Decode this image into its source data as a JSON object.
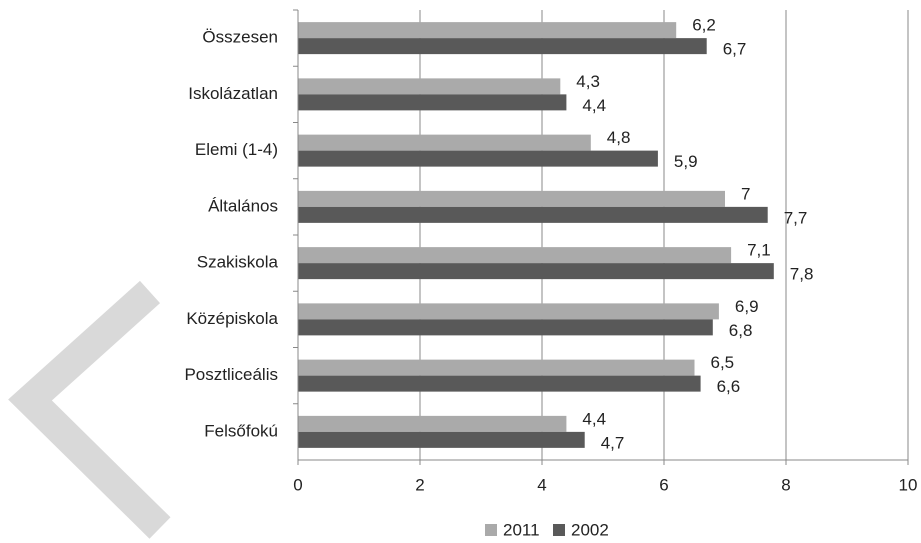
{
  "chart_data": {
    "type": "bar",
    "orientation": "horizontal",
    "categories": [
      "Összesen",
      "Iskolázatlan",
      "Elemi (1-4)",
      "Általános",
      "Szakiskola",
      "Középiskola",
      "Posztliceális",
      "Felsőfokú"
    ],
    "series": [
      {
        "name": "2011",
        "color": "#aaaaaa",
        "values": [
          6.2,
          4.3,
          4.8,
          7,
          7.1,
          6.9,
          6.5,
          4.4
        ],
        "value_labels": [
          "6,2",
          "4,3",
          "4,8",
          "7",
          "7,1",
          "6,9",
          "6,5",
          "4,4"
        ]
      },
      {
        "name": "2002",
        "color": "#595959",
        "values": [
          6.7,
          4.4,
          5.9,
          7.7,
          7.8,
          6.8,
          6.6,
          4.7
        ],
        "value_labels": [
          "6,7",
          "4,4",
          "5,9",
          "7,7",
          "7,8",
          "6,8",
          "6,6",
          "4,7"
        ]
      }
    ],
    "xlim": [
      0,
      10
    ],
    "xticks": [
      0,
      2,
      4,
      6,
      8,
      10
    ],
    "grid": true,
    "legend": "bottom"
  }
}
